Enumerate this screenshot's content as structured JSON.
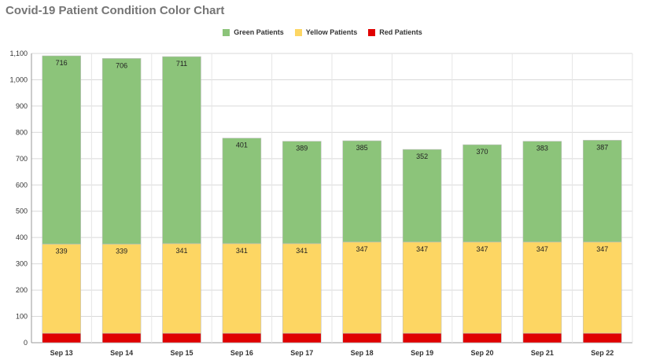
{
  "chart_data": {
    "type": "bar",
    "stacked": true,
    "title": "Covid-19 Patient Condition Color Chart",
    "categories": [
      "Sep 13",
      "Sep 14",
      "Sep 15",
      "Sep 16",
      "Sep 17",
      "Sep 18",
      "Sep 19",
      "Sep 20",
      "Sep 21",
      "Sep 22"
    ],
    "series": [
      {
        "name": "Red Patients",
        "color": "#e00000",
        "values": [
          36,
          36,
          36,
          36,
          36,
          36,
          36,
          36,
          36,
          36
        ]
      },
      {
        "name": "Yellow Patients",
        "color": "#fdd663",
        "values": [
          339,
          339,
          341,
          341,
          341,
          347,
          347,
          347,
          347,
          347
        ]
      },
      {
        "name": "Green Patients",
        "color": "#8cc47a",
        "values": [
          716,
          706,
          711,
          401,
          389,
          385,
          352,
          370,
          383,
          387
        ]
      }
    ],
    "ylim": [
      0,
      1100
    ],
    "yticks": [
      "0",
      "100",
      "200",
      "300",
      "400",
      "500",
      "600",
      "700",
      "800",
      "900",
      "1,000",
      "1,100"
    ],
    "ytick_values": [
      0,
      100,
      200,
      300,
      400,
      500,
      600,
      700,
      800,
      900,
      1000,
      1100
    ],
    "grid": true,
    "legend_position": "top",
    "data_labels": [
      "Yellow Patients",
      "Green Patients"
    ]
  }
}
